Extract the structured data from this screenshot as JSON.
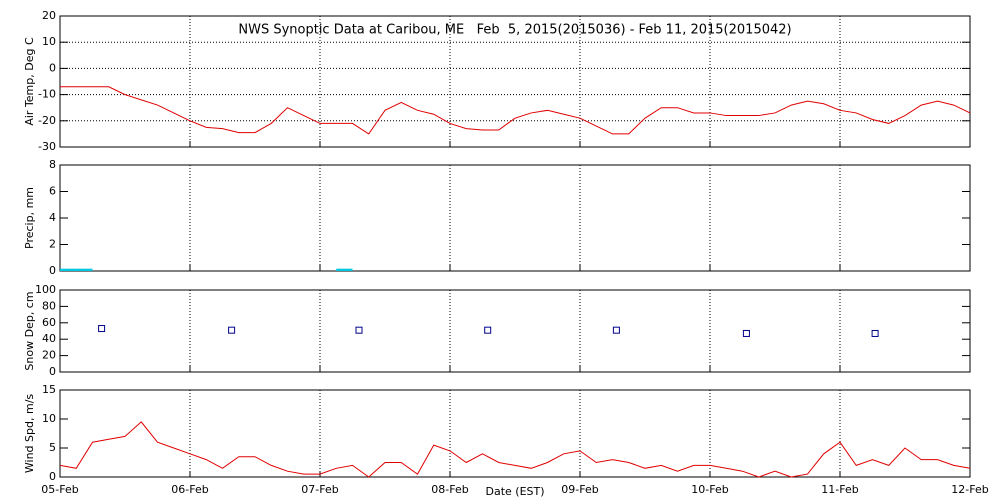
{
  "chart_data": [
    {
      "type": "line",
      "title": "NWS Synoptic Data at Caribou, ME   Feb  5, 2015(2015036) - Feb 11, 2015(2015042)",
      "y_label": "Air Temp, Deg C",
      "color": "#e00000",
      "x": [
        5,
        5.125,
        5.25,
        5.375,
        5.5,
        5.625,
        5.75,
        5.875,
        6,
        6.125,
        6.25,
        6.375,
        6.5,
        6.625,
        6.75,
        6.875,
        7,
        7.125,
        7.25,
        7.375,
        7.5,
        7.625,
        7.75,
        7.875,
        8,
        8.125,
        8.25,
        8.375,
        8.5,
        8.625,
        8.75,
        8.875,
        9,
        9.125,
        9.25,
        9.375,
        9.5,
        9.625,
        9.75,
        9.875,
        10,
        10.125,
        10.25,
        10.375,
        10.5,
        10.625,
        10.75,
        10.875,
        11,
        11.125,
        11.25,
        11.375,
        11.5,
        11.625,
        11.75,
        11.875,
        12
      ],
      "values": [
        -7,
        -7,
        -7,
        -7,
        -10,
        -12,
        -14,
        -17,
        -20,
        -22.5,
        -23,
        -24.5,
        -24.5,
        -21,
        -15,
        -18,
        -21,
        -21,
        -21,
        -25,
        -16,
        -13,
        -16,
        -17.5,
        -21,
        -23,
        -23.5,
        -23.5,
        -19,
        -17,
        -16,
        -17.5,
        -19,
        -22,
        -25,
        -25,
        -19,
        -15,
        -15,
        -17,
        -17,
        -18,
        -18,
        -18,
        -17,
        -14,
        -12.5,
        -13.5,
        -16,
        -17,
        -19.5,
        -21,
        -18,
        -14,
        -12.5,
        -14,
        -17
      ],
      "xlim": [
        5,
        12
      ],
      "xticks": [
        {
          "value": 5,
          "label": "05-Feb"
        },
        {
          "value": 6,
          "label": "06-Feb"
        },
        {
          "value": 7,
          "label": "07-Feb"
        },
        {
          "value": 8,
          "label": "08-Feb"
        },
        {
          "value": 9,
          "label": "09-Feb"
        },
        {
          "value": 10,
          "label": "10-Feb"
        },
        {
          "value": 11,
          "label": "11-Feb"
        },
        {
          "value": 12,
          "label": "12-Feb"
        }
      ],
      "ylim": [
        -30,
        20
      ],
      "yticks": [
        -30,
        -20,
        -10,
        0,
        10,
        20
      ],
      "grid": "both"
    },
    {
      "type": "bar",
      "y_label": "Precip, mm",
      "color": "#00c8e0",
      "x": [
        5,
        5.125,
        7.125
      ],
      "values": [
        0.1,
        0.1,
        0.1
      ],
      "xlim": [
        5,
        12
      ],
      "xticks": [
        {
          "value": 5,
          "label": "05-Feb"
        },
        {
          "value": 6,
          "label": "06-Feb"
        },
        {
          "value": 7,
          "label": "07-Feb"
        },
        {
          "value": 8,
          "label": "08-Feb"
        },
        {
          "value": 9,
          "label": "09-Feb"
        },
        {
          "value": 10,
          "label": "10-Feb"
        },
        {
          "value": 11,
          "label": "11-Feb"
        },
        {
          "value": 12,
          "label": "12-Feb"
        }
      ],
      "ylim": [
        0,
        8
      ],
      "yticks": [
        0,
        2,
        4,
        6,
        8
      ],
      "grid": "x"
    },
    {
      "type": "scatter",
      "y_label": "Snow Dep, cm",
      "color": "#00008b",
      "x": [
        5.32,
        6.32,
        7.3,
        8.29,
        9.28,
        10.28,
        11.27
      ],
      "values": [
        53,
        51,
        51,
        51,
        51,
        47,
        47
      ],
      "xlim": [
        5,
        12
      ],
      "xticks": [
        {
          "value": 5,
          "label": "05-Feb"
        },
        {
          "value": 6,
          "label": "06-Feb"
        },
        {
          "value": 7,
          "label": "07-Feb"
        },
        {
          "value": 8,
          "label": "08-Feb"
        },
        {
          "value": 9,
          "label": "09-Feb"
        },
        {
          "value": 10,
          "label": "10-Feb"
        },
        {
          "value": 11,
          "label": "11-Feb"
        },
        {
          "value": 12,
          "label": "12-Feb"
        }
      ],
      "ylim": [
        0,
        100
      ],
      "yticks": [
        0,
        20,
        40,
        60,
        80,
        100
      ],
      "grid": "x"
    },
    {
      "type": "line",
      "y_label": "Wind Spd, m/s",
      "x_label": "Date (EST)",
      "color": "#e00000",
      "x": [
        5,
        5.125,
        5.25,
        5.375,
        5.5,
        5.625,
        5.75,
        5.875,
        6,
        6.125,
        6.25,
        6.375,
        6.5,
        6.625,
        6.75,
        6.875,
        7,
        7.125,
        7.25,
        7.375,
        7.5,
        7.625,
        7.75,
        7.875,
        8,
        8.125,
        8.25,
        8.375,
        8.5,
        8.625,
        8.75,
        8.875,
        9,
        9.125,
        9.25,
        9.375,
        9.5,
        9.625,
        9.75,
        9.875,
        10,
        10.125,
        10.25,
        10.375,
        10.5,
        10.625,
        10.75,
        10.875,
        11,
        11.125,
        11.25,
        11.375,
        11.5,
        11.625,
        11.75,
        11.875,
        12
      ],
      "values": [
        2,
        1.5,
        6,
        6.5,
        7,
        9.5,
        6,
        5,
        4,
        3,
        1.5,
        3.5,
        3.5,
        2,
        1,
        0.5,
        0.5,
        1.5,
        2,
        0,
        2.5,
        2.5,
        0.5,
        5.5,
        4.5,
        2.5,
        4,
        2.5,
        2,
        1.5,
        2.5,
        4,
        4.5,
        2.5,
        3,
        2.5,
        1.5,
        2,
        1,
        2,
        2,
        1.5,
        1,
        0,
        1,
        0,
        0.5,
        4,
        6,
        2,
        3,
        2,
        5,
        3,
        3,
        2,
        1.5
      ],
      "xlim": [
        5,
        12
      ],
      "xticks": [
        {
          "value": 5,
          "label": "05-Feb"
        },
        {
          "value": 6,
          "label": "06-Feb"
        },
        {
          "value": 7,
          "label": "07-Feb"
        },
        {
          "value": 8,
          "label": "08-Feb"
        },
        {
          "value": 9,
          "label": "09-Feb"
        },
        {
          "value": 10,
          "label": "10-Feb"
        },
        {
          "value": 11,
          "label": "11-Feb"
        },
        {
          "value": 12,
          "label": "12-Feb"
        }
      ],
      "ylim": [
        0,
        15
      ],
      "yticks": [
        0,
        5,
        10,
        15
      ],
      "grid": "x"
    }
  ]
}
